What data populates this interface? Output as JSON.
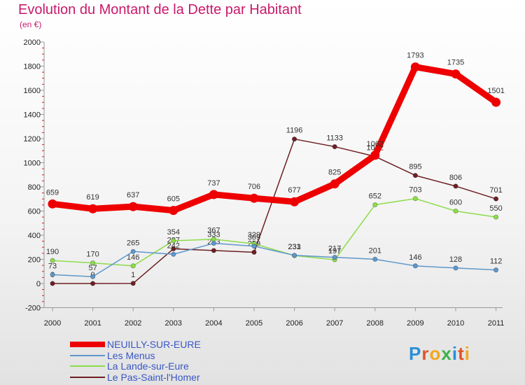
{
  "header": {
    "title": "Evolution du Montant de la Dette par Habitant",
    "unit": "(en €)"
  },
  "logo": {
    "text": "Proxiti"
  },
  "chart_data": {
    "type": "line",
    "title": "Evolution du Montant de la Dette par Habitant",
    "subtitle": "(en €)",
    "xlabel": "",
    "ylabel": "",
    "categories": [
      "2000",
      "2001",
      "2002",
      "2003",
      "2004",
      "2005",
      "2006",
      "2007",
      "2008",
      "2009",
      "2010",
      "2011"
    ],
    "ylim": [
      -200,
      2000
    ],
    "yticks": [
      "-200",
      "0",
      "200",
      "400",
      "600",
      "800",
      "1000",
      "1200",
      "1400",
      "1600",
      "1800",
      "2000"
    ],
    "grid": false,
    "legend": "bottom-left",
    "series": [
      {
        "name": "Le Pas-Saint-l'Homer",
        "color": "#6e1f24",
        "values": [
          0,
          0,
          1,
          287,
          273,
          259,
          1196,
          1133,
          1052,
          895,
          806,
          701
        ],
        "labels": [
          "0",
          "0",
          "1",
          "287",
          "273",
          "259",
          "1196",
          "1133",
          "1052",
          "895",
          "806",
          "701"
        ]
      },
      {
        "name": "La Lande-sur-Eure",
        "color": "#8ddc4a",
        "values": [
          190,
          170,
          146,
          354,
          367,
          329,
          231,
          197,
          652,
          703,
          600,
          550
        ],
        "labels": [
          "190",
          "170",
          "146",
          "354",
          "367",
          "329",
          "231",
          "197",
          "652",
          "703",
          "600",
          "550"
        ]
      },
      {
        "name": "Les Menus",
        "color": "#5f97cc",
        "values": [
          73,
          57,
          265,
          242,
          333,
          309,
          233,
          217,
          201,
          146,
          128,
          112
        ],
        "labels": [
          "73",
          "57",
          "265",
          "242",
          "333",
          "309",
          "233",
          "217",
          "201",
          "146",
          "128",
          "112"
        ]
      },
      {
        "name": "NEUILLY-SUR-EURE",
        "color": "#ee0000",
        "values": [
          659,
          619,
          637,
          605,
          737,
          706,
          677,
          825,
          1062,
          1793,
          1735,
          1501
        ],
        "labels": [
          "659",
          "619",
          "637",
          "605",
          "737",
          "706",
          "677",
          "825",
          "1062",
          "1793",
          "1735",
          "1501"
        ]
      }
    ],
    "legend_entries": [
      {
        "name": "NEUILLY-SUR-EURE",
        "color": "#ee0000"
      },
      {
        "name": "Les Menus",
        "color": "#5f97cc"
      },
      {
        "name": "La Lande-sur-Eure",
        "color": "#8ddc4a"
      },
      {
        "name": "Le Pas-Saint-l'Homer",
        "color": "#6e1f24"
      }
    ]
  }
}
